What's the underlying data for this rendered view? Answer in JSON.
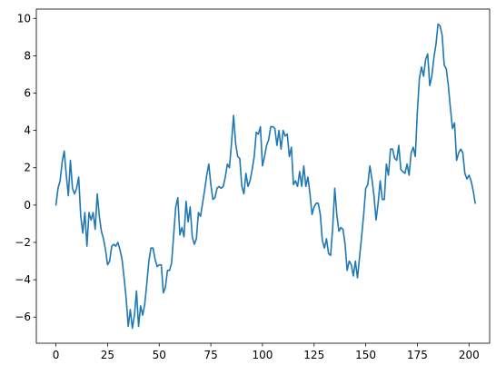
{
  "chart_data": {
    "type": "line",
    "title": "",
    "xlabel": "",
    "ylabel": "",
    "xlim": [
      -9.5,
      210
    ],
    "ylim": [
      -7.4,
      10.5
    ],
    "x_ticks": [
      0,
      25,
      50,
      75,
      100,
      125,
      150,
      175,
      200
    ],
    "y_ticks": [
      -6,
      -4,
      -2,
      0,
      2,
      4,
      6,
      8,
      10
    ],
    "grid": false,
    "legend": "none",
    "colors": {
      "line": "#1f77b4",
      "axes": "#000000",
      "background": "#ffffff"
    },
    "series": [
      {
        "points": [
          [
            0,
            0.0
          ],
          [
            1,
            0.9
          ],
          [
            2,
            1.3
          ],
          [
            3,
            2.3
          ],
          [
            4,
            2.9
          ],
          [
            5,
            1.6
          ],
          [
            6,
            0.5
          ],
          [
            7,
            2.4
          ],
          [
            8,
            0.9
          ],
          [
            9,
            0.6
          ],
          [
            10,
            0.9
          ],
          [
            11,
            1.5
          ],
          [
            12,
            -0.6
          ],
          [
            13,
            -1.5
          ],
          [
            14,
            -0.4
          ],
          [
            15,
            -2.2
          ],
          [
            16,
            -0.4
          ],
          [
            17,
            -0.8
          ],
          [
            18,
            -0.4
          ],
          [
            19,
            -1.3
          ],
          [
            20,
            0.6
          ],
          [
            21,
            -0.6
          ],
          [
            22,
            -1.4
          ],
          [
            23,
            -1.8
          ],
          [
            24,
            -2.4
          ],
          [
            25,
            -3.2
          ],
          [
            26,
            -3.0
          ],
          [
            27,
            -2.2
          ],
          [
            28,
            -2.1
          ],
          [
            29,
            -2.2
          ],
          [
            30,
            -2.0
          ],
          [
            31,
            -2.4
          ],
          [
            32,
            -2.9
          ],
          [
            33,
            -3.9
          ],
          [
            34,
            -5.0
          ],
          [
            35,
            -6.5
          ],
          [
            36,
            -5.6
          ],
          [
            37,
            -6.6
          ],
          [
            38,
            -5.9
          ],
          [
            39,
            -4.6
          ],
          [
            40,
            -6.5
          ],
          [
            41,
            -5.4
          ],
          [
            42,
            -5.9
          ],
          [
            43,
            -5.3
          ],
          [
            44,
            -4.2
          ],
          [
            45,
            -3.0
          ],
          [
            46,
            -2.3
          ],
          [
            47,
            -2.3
          ],
          [
            48,
            -2.9
          ],
          [
            49,
            -3.3
          ],
          [
            50,
            -3.2
          ],
          [
            51,
            -3.2
          ],
          [
            52,
            -4.7
          ],
          [
            53,
            -4.4
          ],
          [
            54,
            -3.5
          ],
          [
            55,
            -3.5
          ],
          [
            56,
            -3.1
          ],
          [
            57,
            -1.6
          ],
          [
            58,
            -0.1
          ],
          [
            59,
            0.4
          ],
          [
            60,
            -1.6
          ],
          [
            61,
            -1.2
          ],
          [
            62,
            -1.7
          ],
          [
            63,
            0.2
          ],
          [
            64,
            -0.9
          ],
          [
            65,
            -0.1
          ],
          [
            66,
            -1.7
          ],
          [
            67,
            -2.1
          ],
          [
            68,
            -1.8
          ],
          [
            69,
            -0.4
          ],
          [
            70,
            -0.6
          ],
          [
            71,
            0.1
          ],
          [
            72,
            0.8
          ],
          [
            73,
            1.6
          ],
          [
            74,
            2.2
          ],
          [
            75,
            1.1
          ],
          [
            76,
            0.3
          ],
          [
            77,
            0.4
          ],
          [
            78,
            0.9
          ],
          [
            79,
            1.0
          ],
          [
            80,
            0.9
          ],
          [
            81,
            1.0
          ],
          [
            82,
            1.5
          ],
          [
            83,
            2.2
          ],
          [
            84,
            2.0
          ],
          [
            85,
            3.3
          ],
          [
            86,
            4.8
          ],
          [
            87,
            3.3
          ],
          [
            88,
            2.6
          ],
          [
            89,
            2.5
          ],
          [
            90,
            1.0
          ],
          [
            91,
            0.6
          ],
          [
            92,
            1.7
          ],
          [
            93,
            1.0
          ],
          [
            94,
            1.3
          ],
          [
            95,
            1.9
          ],
          [
            96,
            2.6
          ],
          [
            97,
            3.9
          ],
          [
            98,
            3.8
          ],
          [
            99,
            4.2
          ],
          [
            100,
            2.1
          ],
          [
            101,
            2.6
          ],
          [
            102,
            3.2
          ],
          [
            103,
            3.5
          ],
          [
            104,
            4.2
          ],
          [
            105,
            4.2
          ],
          [
            106,
            4.1
          ],
          [
            107,
            3.2
          ],
          [
            108,
            4.0
          ],
          [
            109,
            3.0
          ],
          [
            110,
            4.0
          ],
          [
            111,
            3.7
          ],
          [
            112,
            3.8
          ],
          [
            113,
            2.6
          ],
          [
            114,
            3.1
          ],
          [
            115,
            1.1
          ],
          [
            116,
            1.3
          ],
          [
            117,
            1.0
          ],
          [
            118,
            1.8
          ],
          [
            119,
            1.0
          ],
          [
            120,
            2.1
          ],
          [
            121,
            1.0
          ],
          [
            122,
            1.5
          ],
          [
            123,
            0.6
          ],
          [
            124,
            -0.5
          ],
          [
            125,
            -0.1
          ],
          [
            126,
            0.1
          ],
          [
            127,
            0.1
          ],
          [
            128,
            -0.5
          ],
          [
            129,
            -1.9
          ],
          [
            130,
            -2.3
          ],
          [
            131,
            -1.8
          ],
          [
            132,
            -2.6
          ],
          [
            133,
            -2.7
          ],
          [
            134,
            -1.2
          ],
          [
            135,
            0.9
          ],
          [
            136,
            -0.5
          ],
          [
            137,
            -1.4
          ],
          [
            138,
            -1.2
          ],
          [
            139,
            -1.3
          ],
          [
            140,
            -2.1
          ],
          [
            141,
            -3.5
          ],
          [
            142,
            -3.0
          ],
          [
            143,
            -3.2
          ],
          [
            144,
            -3.8
          ],
          [
            145,
            -3.0
          ],
          [
            146,
            -3.9
          ],
          [
            147,
            -2.8
          ],
          [
            148,
            -1.7
          ],
          [
            149,
            -0.5
          ],
          [
            150,
            0.9
          ],
          [
            151,
            1.1
          ],
          [
            152,
            2.1
          ],
          [
            153,
            1.4
          ],
          [
            154,
            0.5
          ],
          [
            155,
            -0.8
          ],
          [
            156,
            0.1
          ],
          [
            157,
            1.3
          ],
          [
            158,
            0.3
          ],
          [
            159,
            0.3
          ],
          [
            160,
            2.2
          ],
          [
            161,
            1.6
          ],
          [
            162,
            3.0
          ],
          [
            163,
            3.0
          ],
          [
            164,
            2.5
          ],
          [
            165,
            2.4
          ],
          [
            166,
            3.2
          ],
          [
            167,
            1.9
          ],
          [
            168,
            1.8
          ],
          [
            169,
            1.7
          ],
          [
            170,
            2.2
          ],
          [
            171,
            1.6
          ],
          [
            172,
            2.8
          ],
          [
            173,
            3.1
          ],
          [
            174,
            2.6
          ],
          [
            175,
            5.0
          ],
          [
            176,
            6.8
          ],
          [
            177,
            7.4
          ],
          [
            178,
            6.9
          ],
          [
            179,
            7.8
          ],
          [
            180,
            8.1
          ],
          [
            181,
            6.4
          ],
          [
            182,
            6.9
          ],
          [
            183,
            7.9
          ],
          [
            184,
            8.6
          ],
          [
            185,
            9.7
          ],
          [
            186,
            9.6
          ],
          [
            187,
            9.1
          ],
          [
            188,
            7.5
          ],
          [
            189,
            7.3
          ],
          [
            190,
            6.4
          ],
          [
            191,
            5.2
          ],
          [
            192,
            4.1
          ],
          [
            193,
            4.4
          ],
          [
            194,
            2.4
          ],
          [
            195,
            2.8
          ],
          [
            196,
            3.0
          ],
          [
            197,
            2.8
          ],
          [
            198,
            1.7
          ],
          [
            199,
            1.4
          ],
          [
            200,
            1.6
          ],
          [
            201,
            1.3
          ],
          [
            202,
            0.8
          ],
          [
            203,
            0.1
          ]
        ]
      }
    ]
  }
}
